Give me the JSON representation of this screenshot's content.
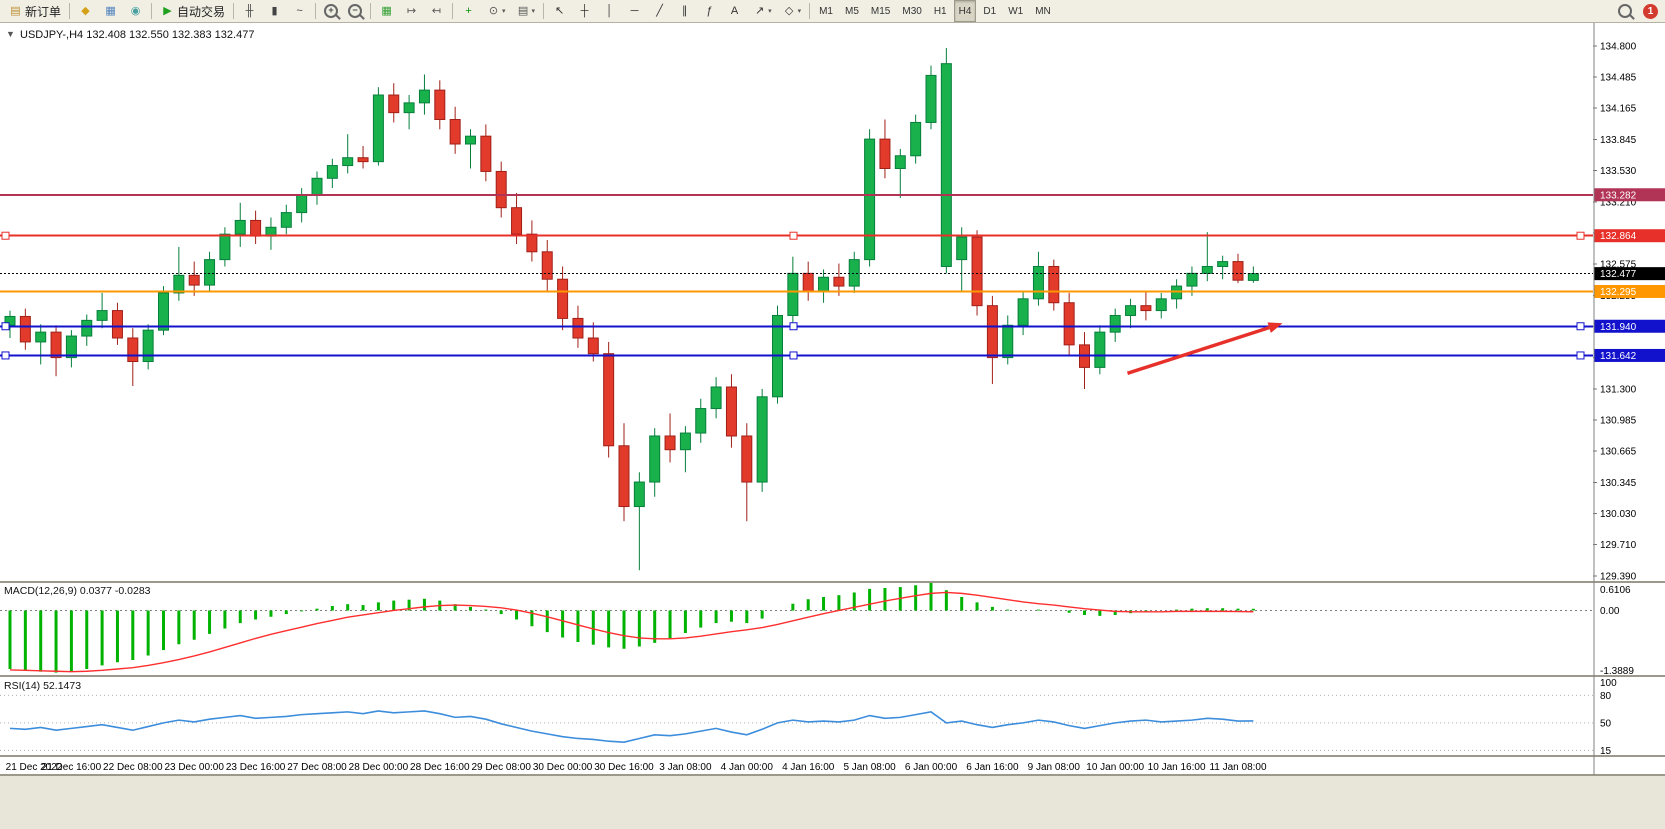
{
  "toolbar": {
    "groups": [
      {
        "name": "orders",
        "items": [
          {
            "name": "new-order-button",
            "label": "新订单",
            "icon": "new-order-icon",
            "glyph": "▤",
            "glyph_color": "#b98e2f"
          }
        ]
      },
      {
        "name": "windows",
        "items": [
          {
            "name": "new-chart-button",
            "icon": "new-chart-icon",
            "glyph": "◆",
            "glyph_color": "#d4a017"
          },
          {
            "name": "profiles-button",
            "icon": "profiles-icon",
            "glyph": "▦",
            "glyph_color": "#4f81bd"
          },
          {
            "name": "terminal-button",
            "icon": "terminal-icon",
            "glyph": "◉",
            "glyph_color": "#48a0a0"
          }
        ]
      },
      {
        "name": "autotrading",
        "items": [
          {
            "name": "autotrading-button",
            "label": "自动交易",
            "icon": "autotrading-icon",
            "glyph": "▶",
            "glyph_color": "#1fa01f"
          }
        ]
      },
      {
        "name": "chart-types",
        "items": [
          {
            "name": "bar-chart-button",
            "icon": "bar-chart-icon",
            "glyph": "╫",
            "glyph_color": "#444444"
          },
          {
            "name": "candlestick-chart-button",
            "icon": "candlestick-icon",
            "glyph": "▮",
            "glyph_color": "#444444"
          },
          {
            "name": "line-chart-button",
            "icon": "line-chart-icon",
            "glyph": "~",
            "glyph_color": "#444444"
          }
        ]
      },
      {
        "name": "zoom",
        "items": [
          {
            "name": "zoom-in-button",
            "icon": "zoom-in-icon",
            "kind": "mag",
            "glyph": "+"
          },
          {
            "name": "zoom-out-button",
            "icon": "zoom-out-icon",
            "kind": "mag",
            "glyph": "−"
          }
        ]
      },
      {
        "name": "arrange",
        "items": [
          {
            "name": "tile-windows-button",
            "icon": "tile-windows-icon",
            "glyph": "▦",
            "glyph_color": "#2f9e2f"
          },
          {
            "name": "auto-scroll-button",
            "icon": "auto-scroll-icon",
            "glyph": "↦",
            "glyph_color": "#555555"
          },
          {
            "name": "chart-shift-button",
            "icon": "chart-shift-icon",
            "glyph": "↤",
            "glyph_color": "#555555"
          }
        ]
      },
      {
        "name": "insert",
        "items": [
          {
            "name": "indicators-button",
            "icon": "indicators-icon",
            "glyph": "+",
            "glyph_color": "#0a930a"
          },
          {
            "name": "periods-button",
            "icon": "periods-icon",
            "glyph": "⊙",
            "glyph_color": "#555555",
            "caret": true
          },
          {
            "name": "templates-button",
            "icon": "templates-icon",
            "glyph": "▤",
            "glyph_color": "#555555",
            "caret": true
          }
        ]
      },
      {
        "name": "tools",
        "items": [
          {
            "name": "cursor-button",
            "icon": "cursor-icon",
            "glyph": "↖",
            "glyph_color": "#333333"
          },
          {
            "name": "crosshair-button",
            "icon": "crosshair-icon",
            "glyph": "┼",
            "glyph_color": "#333333"
          },
          {
            "name": "vertical-line-button",
            "icon": "vertical-line-icon",
            "glyph": "│",
            "glyph_color": "#333333"
          },
          {
            "name": "horizontal-line-button",
            "icon": "horizontal-line-icon",
            "glyph": "─",
            "glyph_color": "#333333"
          },
          {
            "name": "trendline-button",
            "icon": "trendline-icon",
            "glyph": "╱",
            "glyph_color": "#333333"
          },
          {
            "name": "channel-button",
            "icon": "equidistant-channel-icon",
            "glyph": "∥",
            "glyph_color": "#333333"
          },
          {
            "name": "fibonacci-button",
            "icon": "fibonacci-icon",
            "glyph": "ƒ",
            "glyph_color": "#333333"
          },
          {
            "name": "text-button",
            "icon": "text-icon",
            "glyph": "A",
            "glyph_color": "#333333"
          },
          {
            "name": "arrows-button",
            "icon": "arrows-icon",
            "glyph": "↗",
            "glyph_color": "#333333",
            "caret": true
          },
          {
            "name": "shapes-button",
            "icon": "shapes-icon",
            "glyph": "◇",
            "glyph_color": "#333333",
            "caret": true
          }
        ]
      }
    ],
    "timeframes": {
      "items": [
        "M1",
        "M5",
        "M15",
        "M30",
        "H1",
        "H4",
        "D1",
        "W1",
        "MN"
      ],
      "active": "H4"
    },
    "right": [
      {
        "name": "search-button",
        "icon": "search-icon",
        "kind": "mag",
        "glyph": ""
      },
      {
        "name": "notification-badge",
        "label": "1",
        "color": "#d23b2e"
      }
    ]
  },
  "ui": {
    "one_click_expander_glyph": "▼"
  },
  "chart_data": [
    {
      "type": "candlestick",
      "title": "USDJPY-,H4",
      "ohlc_text": "132.408 132.550 132.383 132.477",
      "ylim": [
        129.34,
        135.035
      ],
      "y_axis_ticks": [
        "134.800",
        "134.485",
        "134.165",
        "133.845",
        "133.530",
        "133.210",
        "132.890",
        "132.575",
        "132.255",
        "131.935",
        "131.620",
        "131.300",
        "130.985",
        "130.665",
        "130.345",
        "130.030",
        "129.710",
        "129.390"
      ],
      "x_labels": [
        "21 Dec 2022",
        "21 Dec 16:00",
        "22 Dec 08:00",
        "23 Dec 00:00",
        "23 Dec 16:00",
        "27 Dec 08:00",
        "28 Dec 00:00",
        "28 Dec 16:00",
        "29 Dec 08:00",
        "30 Dec 00:00",
        "30 Dec 16:00",
        "3 Jan 08:00",
        "4 Jan 00:00",
        "4 Jan 16:00",
        "5 Jan 08:00",
        "6 Jan 00:00",
        "6 Jan 16:00",
        "9 Jan 08:00",
        "10 Jan 00:00",
        "10 Jan 16:00",
        "11 Jan 08:00"
      ],
      "colors": {
        "up_fill": "#19b14c",
        "up_stroke": "#067f3c",
        "down_fill": "#e23b2c",
        "down_stroke": "#a02018",
        "background": "#ffffff"
      },
      "current_price": {
        "value": 132.477,
        "label": "132.477",
        "color": "#000000"
      },
      "hlines": [
        {
          "name": "resistance-line-133282",
          "price": 133.282,
          "label": "133.282",
          "color": "#b13355",
          "style": "solid",
          "handles": false
        },
        {
          "name": "resistance-line-132864",
          "price": 132.864,
          "label": "132.864",
          "color": "#e8302a",
          "style": "solid",
          "handles": true
        },
        {
          "name": "pivot-line-132295",
          "price": 132.295,
          "label": "132.295",
          "color": "#ff9800",
          "style": "solid",
          "handles": false
        },
        {
          "name": "support-line-131940",
          "price": 131.94,
          "label": "131.940",
          "color": "#1212cd",
          "style": "solid",
          "handles": true
        },
        {
          "name": "support-line-131642",
          "price": 131.642,
          "label": "131.642",
          "color": "#1212cd",
          "style": "solid",
          "handles": true
        }
      ],
      "arrow": {
        "from_bar": 72.8,
        "from_price": 131.46,
        "to_bar": 82.9,
        "to_price": 131.97,
        "color": "#e8302a",
        "width": 3.5
      },
      "candles": [
        [
          131.95,
          132.1,
          131.82,
          132.04
        ],
        [
          132.04,
          132.12,
          131.7,
          131.78
        ],
        [
          131.78,
          131.96,
          131.55,
          131.88
        ],
        [
          131.88,
          131.95,
          131.43,
          131.62
        ],
        [
          131.62,
          131.9,
          131.52,
          131.84
        ],
        [
          131.84,
          132.06,
          131.74,
          132.0
        ],
        [
          132.0,
          132.28,
          131.92,
          132.1
        ],
        [
          132.1,
          132.18,
          131.75,
          131.82
        ],
        [
          131.82,
          131.92,
          131.33,
          131.58
        ],
        [
          131.58,
          131.96,
          131.5,
          131.9
        ],
        [
          131.9,
          132.35,
          131.85,
          132.28
        ],
        [
          132.28,
          132.75,
          132.2,
          132.46
        ],
        [
          132.46,
          132.6,
          132.25,
          132.36
        ],
        [
          132.36,
          132.7,
          132.3,
          132.62
        ],
        [
          132.62,
          132.95,
          132.55,
          132.88
        ],
        [
          132.88,
          133.2,
          132.75,
          133.02
        ],
        [
          133.02,
          133.12,
          132.78,
          132.86
        ],
        [
          132.86,
          133.05,
          132.72,
          132.95
        ],
        [
          132.95,
          133.18,
          132.88,
          133.1
        ],
        [
          133.1,
          133.35,
          133.0,
          133.28
        ],
        [
          133.28,
          133.52,
          133.18,
          133.45
        ],
        [
          133.45,
          133.65,
          133.35,
          133.58
        ],
        [
          133.58,
          133.9,
          133.5,
          133.66
        ],
        [
          133.66,
          133.78,
          133.55,
          133.62
        ],
        [
          133.62,
          134.38,
          133.58,
          134.3
        ],
        [
          134.3,
          134.42,
          134.02,
          134.12
        ],
        [
          134.12,
          134.3,
          133.95,
          134.22
        ],
        [
          134.22,
          134.51,
          134.1,
          134.35
        ],
        [
          134.35,
          134.45,
          133.95,
          134.05
        ],
        [
          134.05,
          134.18,
          133.7,
          133.8
        ],
        [
          133.8,
          133.95,
          133.55,
          133.88
        ],
        [
          133.88,
          134.0,
          133.42,
          133.52
        ],
        [
          133.52,
          133.62,
          133.05,
          133.15
        ],
        [
          133.15,
          133.3,
          132.78,
          132.88
        ],
        [
          132.88,
          133.02,
          132.6,
          132.7
        ],
        [
          132.7,
          132.82,
          132.3,
          132.42
        ],
        [
          132.42,
          132.55,
          131.9,
          132.02
        ],
        [
          132.02,
          132.15,
          131.72,
          131.82
        ],
        [
          131.82,
          131.98,
          131.58,
          131.66
        ],
        [
          131.66,
          131.78,
          130.6,
          130.72
        ],
        [
          130.72,
          130.95,
          129.95,
          130.1
        ],
        [
          130.1,
          130.45,
          129.45,
          130.35
        ],
        [
          130.35,
          130.9,
          130.2,
          130.82
        ],
        [
          130.82,
          131.05,
          130.55,
          130.68
        ],
        [
          130.68,
          130.92,
          130.45,
          130.85
        ],
        [
          130.85,
          131.2,
          130.75,
          131.1
        ],
        [
          131.1,
          131.42,
          131.0,
          131.32
        ],
        [
          131.32,
          131.45,
          130.7,
          130.82
        ],
        [
          130.82,
          130.95,
          129.95,
          130.35
        ],
        [
          130.35,
          131.3,
          130.25,
          131.22
        ],
        [
          131.22,
          132.15,
          131.15,
          132.05
        ],
        [
          132.05,
          132.65,
          131.98,
          132.48
        ],
        [
          132.48,
          132.6,
          132.2,
          132.3
        ],
        [
          132.3,
          132.52,
          132.18,
          132.44
        ],
        [
          132.44,
          132.58,
          132.25,
          132.35
        ],
        [
          132.35,
          132.7,
          132.28,
          132.62
        ],
        [
          132.62,
          133.95,
          132.55,
          133.85
        ],
        [
          133.85,
          134.05,
          133.45,
          133.55
        ],
        [
          133.55,
          133.75,
          133.25,
          133.68
        ],
        [
          133.68,
          134.1,
          133.6,
          134.02
        ],
        [
          134.02,
          134.6,
          133.95,
          134.5
        ],
        [
          132.55,
          134.78,
          132.48,
          134.62
        ],
        [
          132.62,
          132.95,
          132.3,
          132.85
        ],
        [
          132.85,
          132.92,
          132.05,
          132.15
        ],
        [
          132.15,
          132.25,
          131.35,
          131.62
        ],
        [
          131.62,
          132.05,
          131.55,
          131.95
        ],
        [
          131.95,
          132.3,
          131.85,
          132.22
        ],
        [
          132.22,
          132.7,
          132.15,
          132.55
        ],
        [
          132.55,
          132.62,
          132.1,
          132.18
        ],
        [
          132.18,
          132.28,
          131.65,
          131.75
        ],
        [
          131.75,
          131.88,
          131.3,
          131.52
        ],
        [
          131.52,
          131.95,
          131.45,
          131.88
        ],
        [
          131.88,
          132.12,
          131.78,
          132.05
        ],
        [
          132.05,
          132.22,
          131.92,
          132.15
        ],
        [
          132.15,
          132.3,
          132.0,
          132.1
        ],
        [
          132.1,
          132.28,
          132.02,
          132.22
        ],
        [
          132.22,
          132.42,
          132.12,
          132.35
        ],
        [
          132.35,
          132.55,
          132.25,
          132.48
        ],
        [
          132.48,
          132.9,
          132.4,
          132.55
        ],
        [
          132.55,
          132.66,
          132.42,
          132.6
        ],
        [
          132.6,
          132.68,
          132.38,
          132.41
        ],
        [
          132.408,
          132.55,
          132.383,
          132.477
        ]
      ]
    },
    {
      "type": "macd",
      "label": "MACD(12,26,9)",
      "values_text": "0.0377 -0.0283",
      "axis_ticks": [
        "0.6106",
        "0.00",
        "-1.3889"
      ],
      "ylim": [
        -1.3889,
        0.6106
      ],
      "colors": {
        "histogram": "#00b300",
        "signal": "#ff2f2f"
      },
      "histogram": [
        -1.3,
        -1.34,
        -1.36,
        -1.38,
        -1.35,
        -1.3,
        -1.22,
        -1.15,
        -1.1,
        -1.0,
        -0.88,
        -0.75,
        -0.65,
        -0.52,
        -0.4,
        -0.28,
        -0.2,
        -0.14,
        -0.08,
        -0.02,
        0.04,
        0.1,
        0.14,
        0.12,
        0.18,
        0.22,
        0.24,
        0.26,
        0.22,
        0.14,
        0.08,
        0.02,
        -0.08,
        -0.2,
        -0.35,
        -0.48,
        -0.6,
        -0.7,
        -0.76,
        -0.82,
        -0.85,
        -0.8,
        -0.72,
        -0.62,
        -0.5,
        -0.38,
        -0.28,
        -0.25,
        -0.28,
        -0.18,
        0.0,
        0.15,
        0.25,
        0.3,
        0.34,
        0.4,
        0.48,
        0.5,
        0.52,
        0.56,
        0.61,
        0.45,
        0.3,
        0.18,
        0.08,
        0.02,
        0.0,
        0.02,
        0.0,
        -0.05,
        -0.1,
        -0.12,
        -0.1,
        -0.06,
        -0.03,
        0.0,
        0.02,
        0.04,
        0.05,
        0.05,
        0.04,
        0.0377
      ],
      "signal": [
        -1.32,
        -1.33,
        -1.34,
        -1.35,
        -1.36,
        -1.35,
        -1.33,
        -1.3,
        -1.27,
        -1.22,
        -1.16,
        -1.09,
        -1.01,
        -0.92,
        -0.82,
        -0.72,
        -0.62,
        -0.53,
        -0.45,
        -0.37,
        -0.29,
        -0.22,
        -0.15,
        -0.1,
        -0.05,
        0.0,
        0.04,
        0.08,
        0.11,
        0.12,
        0.11,
        0.09,
        0.06,
        0.01,
        -0.06,
        -0.14,
        -0.23,
        -0.32,
        -0.41,
        -0.49,
        -0.56,
        -0.61,
        -0.63,
        -0.63,
        -0.61,
        -0.57,
        -0.52,
        -0.47,
        -0.43,
        -0.38,
        -0.31,
        -0.23,
        -0.15,
        -0.07,
        0.0,
        0.07,
        0.14,
        0.21,
        0.27,
        0.33,
        0.38,
        0.4,
        0.38,
        0.34,
        0.29,
        0.24,
        0.19,
        0.15,
        0.12,
        0.08,
        0.04,
        0.01,
        -0.02,
        -0.03,
        -0.03,
        -0.03,
        -0.02,
        -0.02,
        -0.02,
        -0.02,
        -0.025,
        -0.0283
      ]
    },
    {
      "type": "rsi",
      "label": "RSI(14)",
      "value_text": "52.1473",
      "axis_ticks": [
        "100",
        "80",
        "50",
        "15"
      ],
      "ylim": [
        15,
        100
      ],
      "levels": [
        80,
        50,
        20
      ],
      "color": "#3c8ddc",
      "series": [
        44,
        43,
        45,
        42,
        44,
        46,
        48,
        45,
        42,
        46,
        50,
        53,
        51,
        54,
        56,
        58,
        55,
        56,
        57,
        59,
        60,
        61,
        62,
        60,
        63,
        61,
        62,
        63,
        60,
        56,
        57,
        54,
        49,
        45,
        41,
        38,
        35,
        33,
        32,
        30,
        29,
        33,
        37,
        36,
        38,
        41,
        44,
        40,
        37,
        43,
        50,
        53,
        51,
        52,
        51,
        53,
        58,
        55,
        56,
        59,
        62,
        50,
        52,
        48,
        45,
        48,
        50,
        53,
        51,
        47,
        44,
        47,
        50,
        52,
        53,
        51,
        52,
        53,
        55,
        54,
        52,
        52.15
      ]
    }
  ]
}
